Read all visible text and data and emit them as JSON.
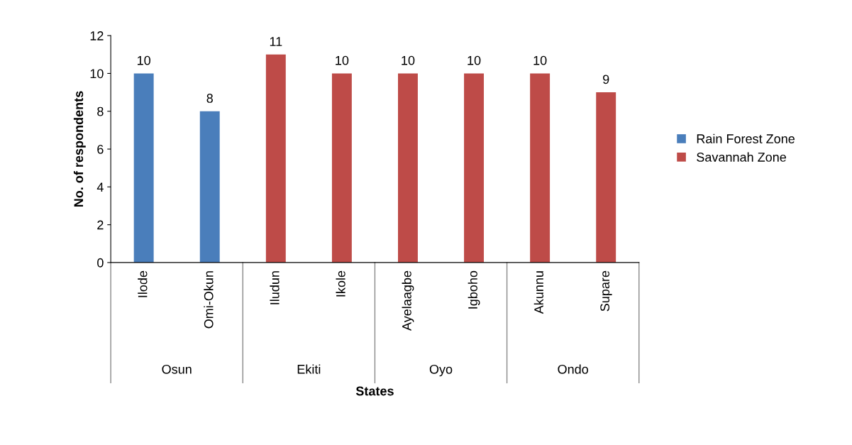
{
  "chart_data": {
    "type": "bar",
    "xlabel": "States",
    "ylabel": "No. of respondents",
    "categories": [
      "Ilode",
      "Omi-Okun",
      "Iludun",
      "Ikole",
      "Ayelaagbe",
      "Igboho",
      "Akunnu",
      "Supare"
    ],
    "series": [
      {
        "name": "Rain Forest Zone",
        "color": "#4a7ebb",
        "values": [
          10,
          8,
          null,
          null,
          null,
          null,
          null,
          null
        ]
      },
      {
        "name": "Savannah Zone",
        "color": "#be4b48",
        "values": [
          null,
          null,
          11,
          10,
          10,
          10,
          10,
          9
        ]
      }
    ],
    "annotations": [
      "Osun",
      "Ekiti",
      "Oyo",
      "Ondo"
    ],
    "ylim": [
      0,
      12
    ],
    "yticks": [
      0,
      2,
      4,
      6,
      8,
      10,
      12
    ],
    "data_labels": true,
    "legend": "right",
    "grid": false
  }
}
